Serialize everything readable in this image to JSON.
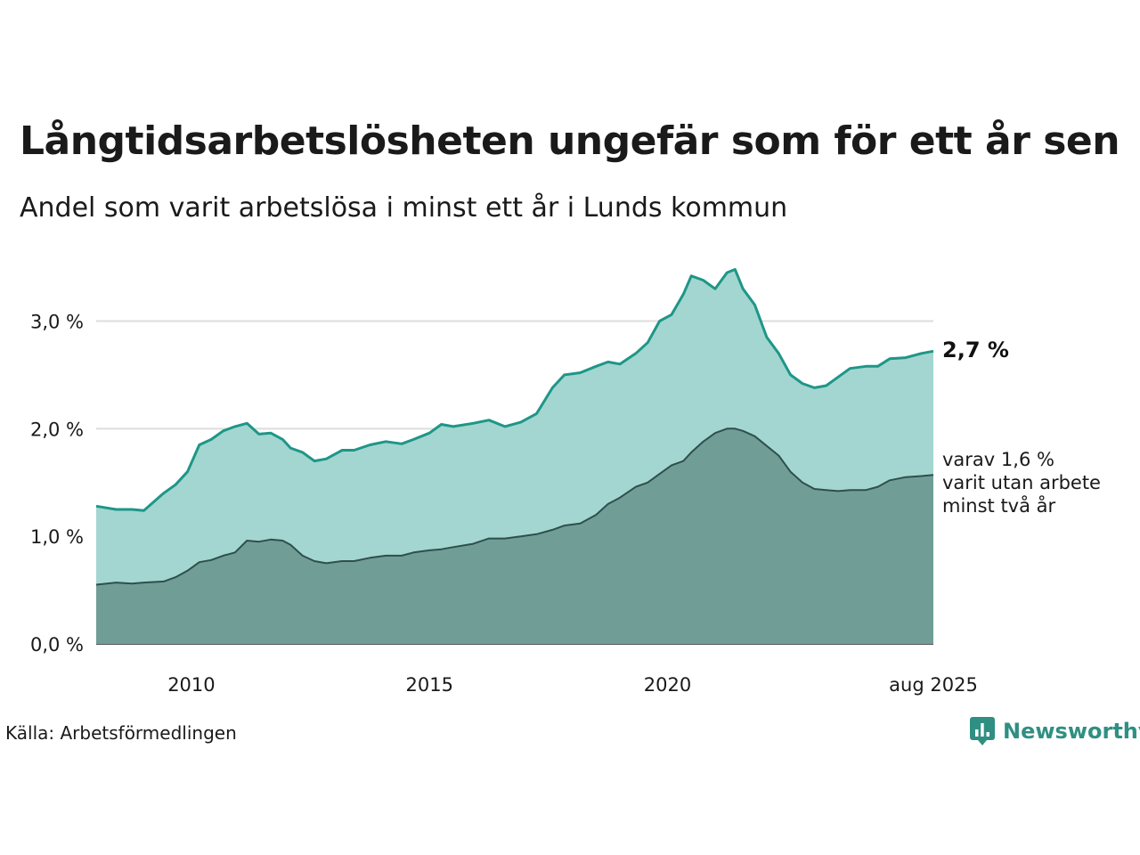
{
  "title": "Långtidsarbetslösheten ungefär som för ett år sen",
  "subtitle": "Andel som varit arbetslösa i minst ett år i Lunds kommun",
  "source": "Källa: Arbetsförmedlingen",
  "brand": {
    "name": "Newsworthy",
    "color": "#2f8f83"
  },
  "chart_data": {
    "type": "area",
    "x_range": [
      "2008-01",
      "2025-08"
    ],
    "ylim": [
      0,
      3.6
    ],
    "y_ticks": [
      {
        "value": 0,
        "label": "0,0 %"
      },
      {
        "value": 1,
        "label": "1,0 %"
      },
      {
        "value": 2,
        "label": "2,0 %"
      },
      {
        "value": 3,
        "label": "3,0 %"
      }
    ],
    "x_ticks": [
      {
        "date": "2010-01",
        "label": "2010"
      },
      {
        "date": "2015-01",
        "label": "2015"
      },
      {
        "date": "2020-01",
        "label": "2020"
      },
      {
        "date": "2025-08",
        "label": "aug 2025"
      }
    ],
    "grid": true,
    "series": [
      {
        "color_fill": "#a3d6d0",
        "color_line": "#1e9688",
        "points": [
          [
            "2008-01",
            1.28
          ],
          [
            "2008-06",
            1.25
          ],
          [
            "2008-10",
            1.25
          ],
          [
            "2009-01",
            1.24
          ],
          [
            "2009-06",
            1.4
          ],
          [
            "2009-09",
            1.48
          ],
          [
            "2009-12",
            1.6
          ],
          [
            "2010-03",
            1.85
          ],
          [
            "2010-06",
            1.9
          ],
          [
            "2010-09",
            1.98
          ],
          [
            "2010-12",
            2.02
          ],
          [
            "2011-03",
            2.05
          ],
          [
            "2011-06",
            1.95
          ],
          [
            "2011-09",
            1.96
          ],
          [
            "2011-12",
            1.9
          ],
          [
            "2012-02",
            1.82
          ],
          [
            "2012-05",
            1.78
          ],
          [
            "2012-08",
            1.7
          ],
          [
            "2012-11",
            1.72
          ],
          [
            "2013-03",
            1.8
          ],
          [
            "2013-06",
            1.8
          ],
          [
            "2013-10",
            1.85
          ],
          [
            "2014-02",
            1.88
          ],
          [
            "2014-06",
            1.86
          ],
          [
            "2014-09",
            1.9
          ],
          [
            "2015-01",
            1.96
          ],
          [
            "2015-04",
            2.04
          ],
          [
            "2015-07",
            2.02
          ],
          [
            "2015-12",
            2.05
          ],
          [
            "2016-04",
            2.08
          ],
          [
            "2016-08",
            2.02
          ],
          [
            "2016-12",
            2.06
          ],
          [
            "2017-04",
            2.14
          ],
          [
            "2017-08",
            2.38
          ],
          [
            "2017-11",
            2.5
          ],
          [
            "2018-03",
            2.52
          ],
          [
            "2018-07",
            2.58
          ],
          [
            "2018-10",
            2.62
          ],
          [
            "2019-01",
            2.6
          ],
          [
            "2019-05",
            2.7
          ],
          [
            "2019-08",
            2.8
          ],
          [
            "2019-11",
            3.0
          ],
          [
            "2020-02",
            3.06
          ],
          [
            "2020-05",
            3.25
          ],
          [
            "2020-07",
            3.42
          ],
          [
            "2020-10",
            3.38
          ],
          [
            "2021-01",
            3.3
          ],
          [
            "2021-04",
            3.45
          ],
          [
            "2021-06",
            3.48
          ],
          [
            "2021-08",
            3.3
          ],
          [
            "2021-11",
            3.15
          ],
          [
            "2022-02",
            2.85
          ],
          [
            "2022-05",
            2.7
          ],
          [
            "2022-08",
            2.5
          ],
          [
            "2022-11",
            2.42
          ],
          [
            "2023-02",
            2.38
          ],
          [
            "2023-05",
            2.4
          ],
          [
            "2023-08",
            2.48
          ],
          [
            "2023-11",
            2.56
          ],
          [
            "2024-03",
            2.58
          ],
          [
            "2024-06",
            2.58
          ],
          [
            "2024-09",
            2.65
          ],
          [
            "2025-01",
            2.66
          ],
          [
            "2025-05",
            2.7
          ],
          [
            "2025-08",
            2.72
          ]
        ],
        "end_label": "2,7 %"
      },
      {
        "color_fill": "#709e97",
        "color_line": "#2f4f4b",
        "points": [
          [
            "2008-01",
            0.55
          ],
          [
            "2008-06",
            0.57
          ],
          [
            "2008-10",
            0.56
          ],
          [
            "2009-01",
            0.57
          ],
          [
            "2009-06",
            0.58
          ],
          [
            "2009-09",
            0.62
          ],
          [
            "2009-12",
            0.68
          ],
          [
            "2010-03",
            0.76
          ],
          [
            "2010-06",
            0.78
          ],
          [
            "2010-09",
            0.82
          ],
          [
            "2010-12",
            0.85
          ],
          [
            "2011-03",
            0.96
          ],
          [
            "2011-06",
            0.95
          ],
          [
            "2011-09",
            0.97
          ],
          [
            "2011-12",
            0.96
          ],
          [
            "2012-02",
            0.92
          ],
          [
            "2012-05",
            0.82
          ],
          [
            "2012-08",
            0.77
          ],
          [
            "2012-11",
            0.75
          ],
          [
            "2013-03",
            0.77
          ],
          [
            "2013-06",
            0.77
          ],
          [
            "2013-10",
            0.8
          ],
          [
            "2014-02",
            0.82
          ],
          [
            "2014-06",
            0.82
          ],
          [
            "2014-09",
            0.85
          ],
          [
            "2015-01",
            0.87
          ],
          [
            "2015-04",
            0.88
          ],
          [
            "2015-07",
            0.9
          ],
          [
            "2015-12",
            0.93
          ],
          [
            "2016-04",
            0.98
          ],
          [
            "2016-08",
            0.98
          ],
          [
            "2016-12",
            1.0
          ],
          [
            "2017-04",
            1.02
          ],
          [
            "2017-08",
            1.06
          ],
          [
            "2017-11",
            1.1
          ],
          [
            "2018-03",
            1.12
          ],
          [
            "2018-07",
            1.2
          ],
          [
            "2018-10",
            1.3
          ],
          [
            "2019-01",
            1.36
          ],
          [
            "2019-05",
            1.46
          ],
          [
            "2019-08",
            1.5
          ],
          [
            "2019-11",
            1.58
          ],
          [
            "2020-02",
            1.66
          ],
          [
            "2020-05",
            1.7
          ],
          [
            "2020-07",
            1.78
          ],
          [
            "2020-10",
            1.88
          ],
          [
            "2021-01",
            1.96
          ],
          [
            "2021-04",
            2.0
          ],
          [
            "2021-06",
            2.0
          ],
          [
            "2021-08",
            1.98
          ],
          [
            "2021-11",
            1.93
          ],
          [
            "2022-02",
            1.84
          ],
          [
            "2022-05",
            1.75
          ],
          [
            "2022-08",
            1.6
          ],
          [
            "2022-11",
            1.5
          ],
          [
            "2023-02",
            1.44
          ],
          [
            "2023-05",
            1.43
          ],
          [
            "2023-08",
            1.42
          ],
          [
            "2023-11",
            1.43
          ],
          [
            "2024-03",
            1.43
          ],
          [
            "2024-06",
            1.46
          ],
          [
            "2024-09",
            1.52
          ],
          [
            "2025-01",
            1.55
          ],
          [
            "2025-05",
            1.56
          ],
          [
            "2025-08",
            1.57
          ]
        ],
        "end_label": [
          "varav 1,6 %",
          "varit utan arbete",
          "minst två år"
        ]
      }
    ]
  }
}
